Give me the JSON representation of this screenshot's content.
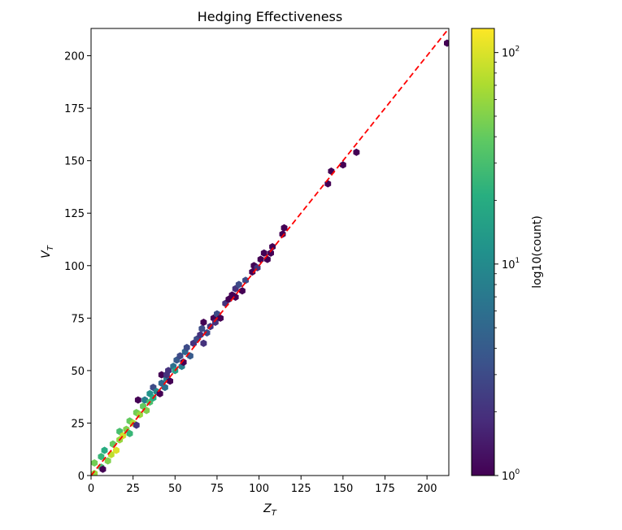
{
  "chart_data": {
    "type": "hexbin",
    "title": "Hedging Effectiveness",
    "xlabel": {
      "main": "Z",
      "sub": "T"
    },
    "ylabel": {
      "main": "V",
      "sub": "T"
    },
    "xlim": [
      0,
      213
    ],
    "ylim": [
      0,
      213
    ],
    "xticks": [
      0,
      25,
      50,
      75,
      100,
      125,
      150,
      175,
      200
    ],
    "yticks": [
      0,
      25,
      50,
      75,
      100,
      125,
      150,
      175,
      200
    ],
    "reference_line": {
      "from": [
        0,
        0
      ],
      "to": [
        213,
        213
      ],
      "color": "#ff0000",
      "style": "dashed"
    },
    "colormap": "viridis",
    "colorbar": {
      "label": "log10(count)",
      "scale": "log",
      "range": [
        1,
        130
      ],
      "ticks": [
        {
          "value": 1,
          "base": "10",
          "exp": "0"
        },
        {
          "value": 10,
          "base": "10",
          "exp": "1"
        },
        {
          "value": 100,
          "base": "10",
          "exp": "2"
        }
      ]
    },
    "bins": [
      [
        2,
        1,
        60
      ],
      [
        2,
        6,
        45
      ],
      [
        6,
        4,
        30
      ],
      [
        6,
        9,
        25
      ],
      [
        7,
        3,
        1
      ],
      [
        8,
        12,
        20
      ],
      [
        10,
        7,
        50
      ],
      [
        12,
        10,
        80
      ],
      [
        13,
        15,
        40
      ],
      [
        15,
        12,
        100
      ],
      [
        17,
        17,
        60
      ],
      [
        17,
        21,
        30
      ],
      [
        19,
        19,
        90
      ],
      [
        21,
        22,
        50
      ],
      [
        23,
        20,
        25
      ],
      [
        23,
        26,
        40
      ],
      [
        25,
        25,
        70
      ],
      [
        27,
        30,
        45
      ],
      [
        27,
        24,
        2
      ],
      [
        28,
        36,
        1
      ],
      [
        29,
        29,
        60
      ],
      [
        31,
        33,
        40
      ],
      [
        32,
        36,
        8
      ],
      [
        33,
        31,
        50
      ],
      [
        35,
        35,
        30
      ],
      [
        35,
        39,
        12
      ],
      [
        37,
        37,
        20
      ],
      [
        37,
        42,
        3
      ],
      [
        39,
        40,
        10
      ],
      [
        41,
        39,
        1
      ],
      [
        42,
        44,
        5
      ],
      [
        42,
        48,
        1
      ],
      [
        44,
        42,
        6
      ],
      [
        45,
        46,
        8
      ],
      [
        45,
        48,
        2
      ],
      [
        46,
        50,
        2
      ],
      [
        47,
        45,
        1
      ],
      [
        49,
        52,
        6
      ],
      [
        50,
        50,
        15
      ],
      [
        51,
        55,
        4
      ],
      [
        53,
        57,
        3
      ],
      [
        54,
        52,
        8
      ],
      [
        55,
        54,
        1
      ],
      [
        56,
        59,
        5
      ],
      [
        57,
        61,
        3
      ],
      [
        59,
        57,
        4
      ],
      [
        61,
        63,
        2
      ],
      [
        63,
        65,
        3
      ],
      [
        65,
        67,
        2
      ],
      [
        66,
        70,
        3
      ],
      [
        67,
        63,
        2
      ],
      [
        67,
        73,
        1
      ],
      [
        69,
        68,
        3
      ],
      [
        71,
        71,
        2
      ],
      [
        73,
        75,
        1
      ],
      [
        74,
        73,
        2
      ],
      [
        75,
        77,
        3
      ],
      [
        77,
        75,
        1
      ],
      [
        80,
        82,
        2
      ],
      [
        82,
        84,
        1
      ],
      [
        84,
        86,
        1
      ],
      [
        86,
        85,
        1
      ],
      [
        86,
        89,
        2
      ],
      [
        88,
        91,
        3
      ],
      [
        90,
        88,
        1
      ],
      [
        92,
        93,
        3
      ],
      [
        96,
        97,
        1
      ],
      [
        97,
        100,
        1
      ],
      [
        99,
        99,
        2
      ],
      [
        101,
        103,
        1
      ],
      [
        103,
        106,
        1
      ],
      [
        105,
        103,
        1
      ],
      [
        107,
        106,
        1
      ],
      [
        108,
        109,
        1
      ],
      [
        114,
        115,
        1
      ],
      [
        115,
        118,
        1
      ],
      [
        141,
        139,
        1
      ],
      [
        143,
        145,
        1
      ],
      [
        150,
        148,
        1
      ],
      [
        158,
        154,
        1
      ],
      [
        212,
        206,
        1
      ]
    ]
  }
}
